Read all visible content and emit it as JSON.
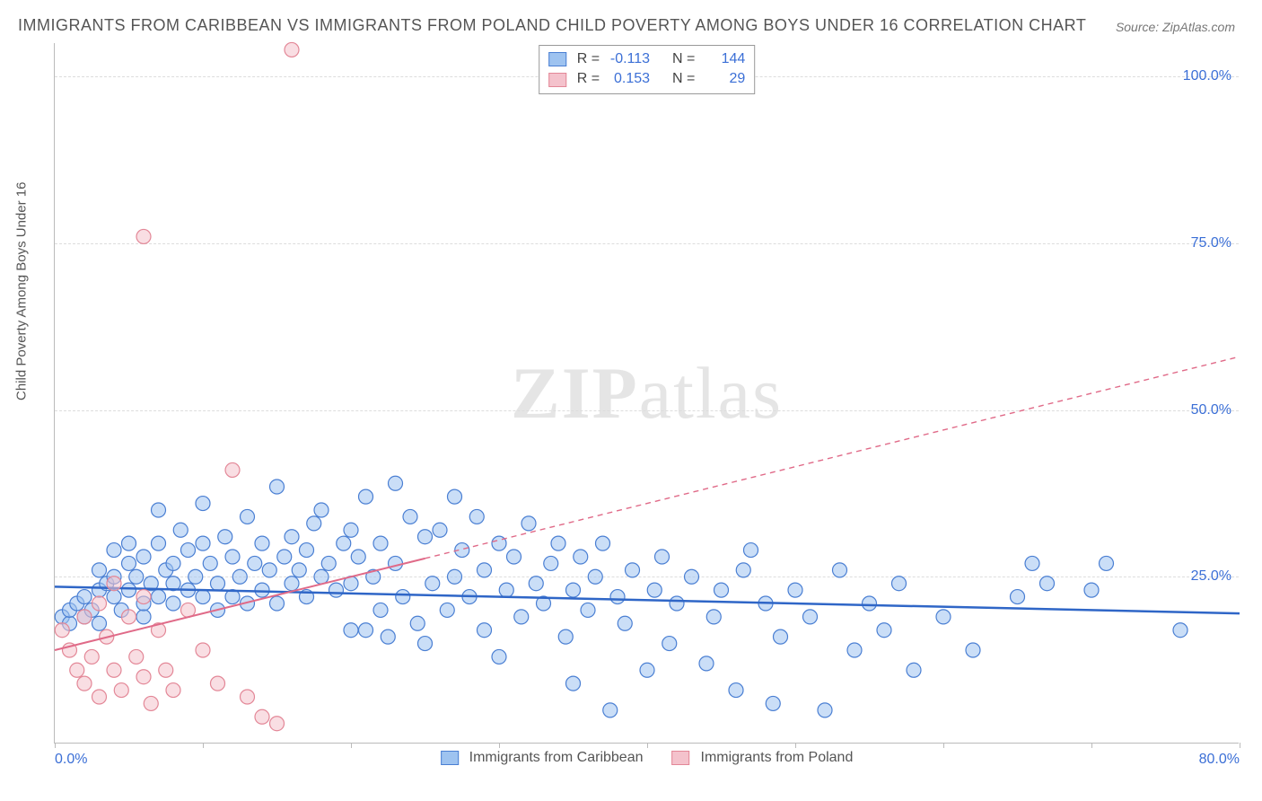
{
  "title_text": "IMMIGRANTS FROM CARIBBEAN VS IMMIGRANTS FROM POLAND CHILD POVERTY AMONG BOYS UNDER 16 CORRELATION CHART",
  "source_prefix": "Source: ",
  "source_name": "ZipAtlas.com",
  "y_axis_title": "Child Poverty Among Boys Under 16",
  "watermark_bold": "ZIP",
  "watermark_rest": "atlas",
  "chart": {
    "type": "scatter",
    "xlim": [
      0,
      80
    ],
    "ylim": [
      0,
      105
    ],
    "x_ticks_major": [
      0,
      80
    ],
    "x_ticks_minor": [
      10,
      20,
      30,
      40,
      50,
      60,
      70
    ],
    "x_tick_labels": {
      "0": "0.0%",
      "80": "80.0%"
    },
    "y_ticks": [
      25,
      50,
      75,
      100
    ],
    "y_tick_labels": {
      "25": "25.0%",
      "50": "50.0%",
      "75": "75.0%",
      "100": "100.0%"
    },
    "marker_radius": 8,
    "marker_opacity": 0.55,
    "background_color": "#ffffff",
    "grid_color": "#dddddd"
  },
  "series": [
    {
      "key": "caribbean",
      "label": "Immigrants from Caribbean",
      "fill": "#9ec3f0",
      "stroke": "#4a7fd3",
      "R_label": "R =",
      "R": "-0.113",
      "N_label": "N =",
      "N": "144",
      "trend": {
        "x1": 0,
        "y1": 23.5,
        "x2": 80,
        "y2": 19.5,
        "solid_until_x": 80,
        "color": "#2f66c7",
        "width": 2.5
      },
      "points": [
        [
          0.5,
          19
        ],
        [
          1,
          18
        ],
        [
          1,
          20
        ],
        [
          1.5,
          21
        ],
        [
          2,
          19
        ],
        [
          2,
          22
        ],
        [
          2.5,
          20
        ],
        [
          3,
          26
        ],
        [
          3,
          23
        ],
        [
          3,
          18
        ],
        [
          3.5,
          24
        ],
        [
          4,
          22
        ],
        [
          4,
          25
        ],
        [
          4,
          29
        ],
        [
          4.5,
          20
        ],
        [
          5,
          23
        ],
        [
          5,
          27
        ],
        [
          5,
          30
        ],
        [
          5.5,
          25
        ],
        [
          6,
          19
        ],
        [
          6,
          28
        ],
        [
          6,
          21
        ],
        [
          6.5,
          24
        ],
        [
          7,
          30
        ],
        [
          7,
          22
        ],
        [
          7,
          35
        ],
        [
          7.5,
          26
        ],
        [
          8,
          21
        ],
        [
          8,
          24
        ],
        [
          8,
          27
        ],
        [
          8.5,
          32
        ],
        [
          9,
          23
        ],
        [
          9,
          29
        ],
        [
          9.5,
          25
        ],
        [
          10,
          30
        ],
        [
          10,
          36
        ],
        [
          10,
          22
        ],
        [
          10.5,
          27
        ],
        [
          11,
          24
        ],
        [
          11,
          20
        ],
        [
          11.5,
          31
        ],
        [
          12,
          22
        ],
        [
          12,
          28
        ],
        [
          12.5,
          25
        ],
        [
          13,
          21
        ],
        [
          13,
          34
        ],
        [
          13.5,
          27
        ],
        [
          14,
          30
        ],
        [
          14,
          23
        ],
        [
          14.5,
          26
        ],
        [
          15,
          38.5
        ],
        [
          15,
          21
        ],
        [
          15.5,
          28
        ],
        [
          16,
          24
        ],
        [
          16,
          31
        ],
        [
          16.5,
          26
        ],
        [
          17,
          29
        ],
        [
          17,
          22
        ],
        [
          17.5,
          33
        ],
        [
          18,
          25
        ],
        [
          18,
          35
        ],
        [
          18.5,
          27
        ],
        [
          19,
          23
        ],
        [
          19.5,
          30
        ],
        [
          20,
          17
        ],
        [
          20,
          32
        ],
        [
          20,
          24
        ],
        [
          20.5,
          28
        ],
        [
          21,
          37
        ],
        [
          21,
          17
        ],
        [
          21.5,
          25
        ],
        [
          22,
          20
        ],
        [
          22,
          30
        ],
        [
          22.5,
          16
        ],
        [
          23,
          27
        ],
        [
          23,
          39
        ],
        [
          23.5,
          22
        ],
        [
          24,
          34
        ],
        [
          24.5,
          18
        ],
        [
          25,
          31
        ],
        [
          25,
          15
        ],
        [
          25.5,
          24
        ],
        [
          26,
          32
        ],
        [
          26.5,
          20
        ],
        [
          27,
          37
        ],
        [
          27,
          25
        ],
        [
          27.5,
          29
        ],
        [
          28,
          22
        ],
        [
          28.5,
          34
        ],
        [
          29,
          17
        ],
        [
          29,
          26
        ],
        [
          30,
          30
        ],
        [
          30,
          13
        ],
        [
          30.5,
          23
        ],
        [
          31,
          28
        ],
        [
          31.5,
          19
        ],
        [
          32,
          33
        ],
        [
          32.5,
          24
        ],
        [
          33,
          21
        ],
        [
          33.5,
          27
        ],
        [
          34,
          30
        ],
        [
          34.5,
          16
        ],
        [
          35,
          23
        ],
        [
          35,
          9
        ],
        [
          35.5,
          28
        ],
        [
          36,
          20
        ],
        [
          36.5,
          25
        ],
        [
          37,
          30
        ],
        [
          37.5,
          5
        ],
        [
          38,
          22
        ],
        [
          38.5,
          18
        ],
        [
          39,
          26
        ],
        [
          40,
          11
        ],
        [
          40.5,
          23
        ],
        [
          41,
          28
        ],
        [
          41.5,
          15
        ],
        [
          42,
          21
        ],
        [
          43,
          25
        ],
        [
          44,
          12
        ],
        [
          44.5,
          19
        ],
        [
          45,
          23
        ],
        [
          46,
          8
        ],
        [
          46.5,
          26
        ],
        [
          47,
          29
        ],
        [
          48,
          21
        ],
        [
          48.5,
          6
        ],
        [
          49,
          16
        ],
        [
          50,
          23
        ],
        [
          51,
          19
        ],
        [
          52,
          5
        ],
        [
          53,
          26
        ],
        [
          54,
          14
        ],
        [
          55,
          21
        ],
        [
          56,
          17
        ],
        [
          57,
          24
        ],
        [
          58,
          11
        ],
        [
          60,
          19
        ],
        [
          62,
          14
        ],
        [
          65,
          22
        ],
        [
          66,
          27
        ],
        [
          67,
          24
        ],
        [
          70,
          23
        ],
        [
          71,
          27
        ],
        [
          76,
          17
        ]
      ]
    },
    {
      "key": "poland",
      "label": "Immigrants from Poland",
      "fill": "#f4c2cc",
      "stroke": "#e38797",
      "R_label": "R =",
      "R": "0.153",
      "N_label": "N =",
      "N": "29",
      "trend": {
        "x1": 0,
        "y1": 14,
        "x2": 80,
        "y2": 58,
        "solid_until_x": 25,
        "color": "#e06a88",
        "width": 2,
        "dash": "6,5"
      },
      "points": [
        [
          0.5,
          17
        ],
        [
          1,
          14
        ],
        [
          1.5,
          11
        ],
        [
          2,
          19
        ],
        [
          2,
          9
        ],
        [
          2.5,
          13
        ],
        [
          3,
          21
        ],
        [
          3,
          7
        ],
        [
          3.5,
          16
        ],
        [
          4,
          11
        ],
        [
          4,
          24
        ],
        [
          4.5,
          8
        ],
        [
          5,
          19
        ],
        [
          5.5,
          13
        ],
        [
          6,
          10
        ],
        [
          6,
          22
        ],
        [
          6.5,
          6
        ],
        [
          7,
          17
        ],
        [
          7.5,
          11
        ],
        [
          8,
          8
        ],
        [
          9,
          20
        ],
        [
          10,
          14
        ],
        [
          11,
          9
        ],
        [
          12,
          41
        ],
        [
          13,
          7
        ],
        [
          14,
          4
        ],
        [
          15,
          3
        ],
        [
          6,
          76
        ],
        [
          16,
          104
        ]
      ]
    }
  ]
}
